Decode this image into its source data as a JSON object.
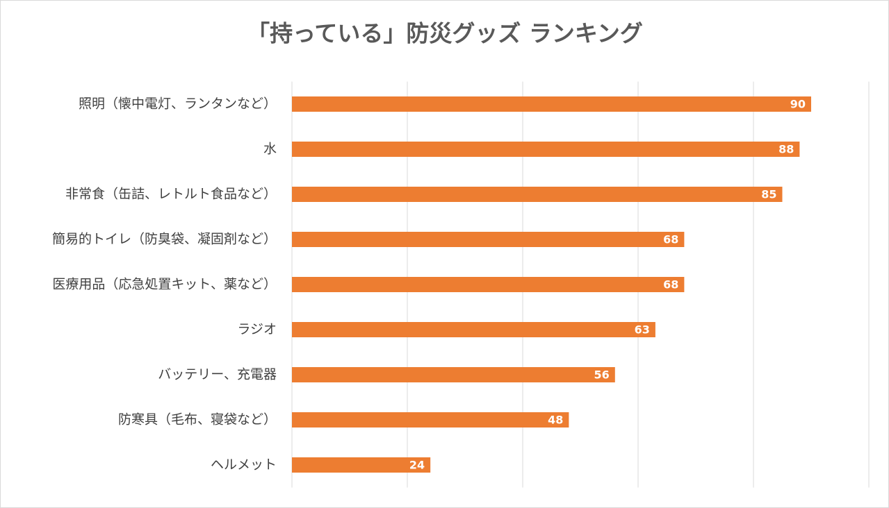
{
  "chart_data": {
    "type": "bar",
    "orientation": "horizontal",
    "title": "「持っている」防災グッズ ランキング",
    "categories": [
      "照明（懐中電灯、ランタンなど）",
      "水",
      "非常食（缶詰、レトルト食品など）",
      "簡易的トイレ（防臭袋、凝固剤など）",
      "医療用品（応急処置キット、薬など）",
      "ラジオ",
      "バッテリー、充電器",
      "防寒具（毛布、寝袋など）",
      "ヘルメット"
    ],
    "values": [
      90,
      88,
      85,
      68,
      68,
      63,
      56,
      48,
      24
    ],
    "color": "#ed7d31",
    "xlim": [
      0,
      100
    ],
    "xticks": [
      0,
      20,
      40,
      60,
      80,
      100
    ],
    "grid": true
  }
}
